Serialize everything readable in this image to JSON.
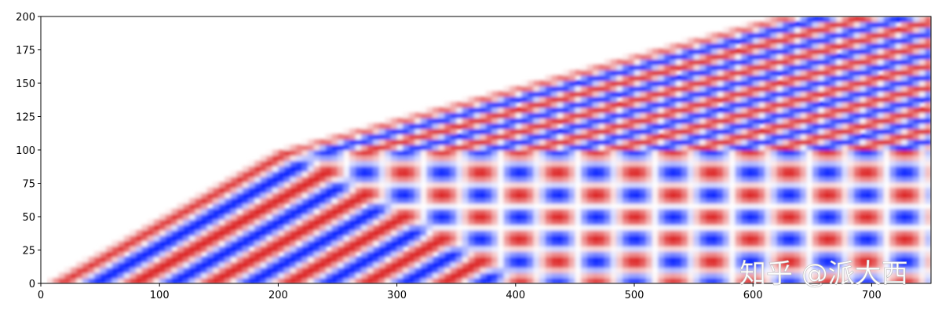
{
  "chart_data": {
    "type": "image",
    "xlim": [
      0,
      750
    ],
    "ylim": [
      0,
      200
    ],
    "xticks": [
      0,
      100,
      200,
      300,
      400,
      500,
      600,
      700
    ],
    "yticks": [
      0,
      25,
      50,
      75,
      100,
      125,
      150,
      175,
      200
    ],
    "watermark": "知乎 @派大西"
  }
}
